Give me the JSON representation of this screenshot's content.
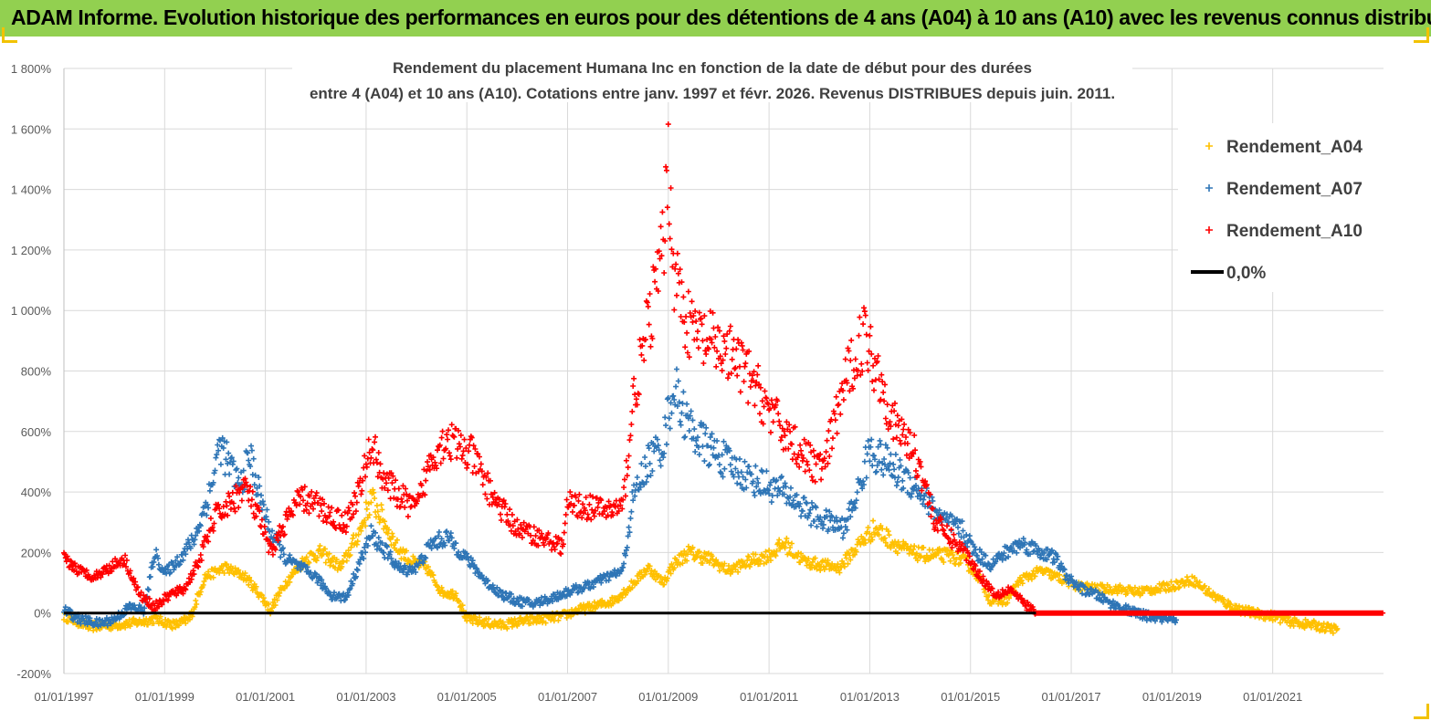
{
  "header": {
    "title": "ADAM Informe. Evolution historique des performances en euros pour des détentions de 4 ans (A04) à 10 ans (A10) avec les revenus connus distribués"
  },
  "colors": {
    "banner": "#92d050",
    "a04": "#ffc000",
    "a07": "#2e75b6",
    "a10": "#ff0000",
    "zero": "#000000",
    "grid": "#d9d9d9"
  },
  "chart_data": {
    "type": "scatter",
    "title_line1": "Rendement du placement Humana Inc en fonction de la date de début pour des durées",
    "title_line2": "entre 4 (A04) et 10 ans (A10).  Cotations entre janv. 1997 et févr. 2026. Revenus DISTRIBUES depuis juin. 2011.",
    "y_ticks": [
      "-200%",
      "0%",
      "200%",
      "400%",
      "600%",
      "800%",
      "1 000%",
      "1 200%",
      "1 400%",
      "1 600%",
      "1 800%"
    ],
    "ylim": [
      -200,
      1800
    ],
    "x_ticks": [
      "01/01/1997",
      "01/01/1999",
      "01/01/2001",
      "01/01/2003",
      "01/01/2005",
      "01/01/2007",
      "01/01/2009",
      "01/01/2011",
      "01/01/2013",
      "01/01/2015",
      "01/01/2017",
      "01/01/2019",
      "01/01/2021"
    ],
    "xlim": [
      1997.0,
      2023.2
    ],
    "legend": [
      "Rendement_A04",
      "Rendement_A07",
      "Rendement_A10",
      "0,0%"
    ],
    "legend_position": "top-right",
    "series": [
      {
        "name": "Rendement_A04",
        "color": "#ffc000",
        "points": [
          [
            1997.0,
            -10
          ],
          [
            1997.5,
            -45
          ],
          [
            1998.0,
            -40
          ],
          [
            1998.5,
            -30
          ],
          [
            1998.8,
            -20
          ],
          [
            1999.2,
            -40
          ],
          [
            1999.5,
            -20
          ],
          [
            1999.8,
            120
          ],
          [
            2000.2,
            150
          ],
          [
            2000.6,
            120
          ],
          [
            2000.9,
            60
          ],
          [
            2001.1,
            10
          ],
          [
            2001.4,
            100
          ],
          [
            2001.8,
            180
          ],
          [
            2002.1,
            200
          ],
          [
            2002.5,
            150
          ],
          [
            2002.9,
            280
          ],
          [
            2003.1,
            380
          ],
          [
            2003.3,
            320
          ],
          [
            2003.6,
            220
          ],
          [
            2003.9,
            170
          ],
          [
            2004.2,
            150
          ],
          [
            2004.5,
            70
          ],
          [
            2004.8,
            60
          ],
          [
            2005.0,
            -20
          ],
          [
            2005.3,
            -30
          ],
          [
            2005.7,
            -40
          ],
          [
            2006.0,
            -30
          ],
          [
            2006.5,
            -20
          ],
          [
            2006.9,
            -10
          ],
          [
            2007.2,
            10
          ],
          [
            2007.5,
            20
          ],
          [
            2007.9,
            40
          ],
          [
            2008.2,
            80
          ],
          [
            2008.6,
            150
          ],
          [
            2008.9,
            100
          ],
          [
            2009.1,
            160
          ],
          [
            2009.4,
            200
          ],
          [
            2009.8,
            180
          ],
          [
            2010.2,
            140
          ],
          [
            2010.6,
            170
          ],
          [
            2011.0,
            190
          ],
          [
            2011.3,
            230
          ],
          [
            2011.7,
            170
          ],
          [
            2012.0,
            160
          ],
          [
            2012.4,
            150
          ],
          [
            2012.8,
            230
          ],
          [
            2013.1,
            280
          ],
          [
            2013.5,
            230
          ],
          [
            2013.8,
            200
          ],
          [
            2014.2,
            190
          ],
          [
            2014.6,
            190
          ],
          [
            2014.9,
            170
          ],
          [
            2015.2,
            110
          ],
          [
            2015.4,
            40
          ],
          [
            2015.7,
            40
          ],
          [
            2016.0,
            110
          ],
          [
            2016.4,
            140
          ],
          [
            2016.7,
            120
          ],
          [
            2017.1,
            90
          ],
          [
            2017.5,
            80
          ],
          [
            2017.9,
            80
          ],
          [
            2018.3,
            70
          ],
          [
            2018.7,
            80
          ],
          [
            2019.0,
            90
          ],
          [
            2019.4,
            110
          ],
          [
            2019.8,
            60
          ],
          [
            2020.2,
            20
          ],
          [
            2020.6,
            0
          ],
          [
            2021.0,
            -10
          ],
          [
            2021.4,
            -30
          ],
          [
            2021.8,
            -40
          ],
          [
            2022.1,
            -50
          ],
          [
            2022.3,
            -55
          ]
        ]
      },
      {
        "name": "Rendement_A07",
        "color": "#2e75b6",
        "points": [
          [
            1997.0,
            10
          ],
          [
            1997.3,
            -20
          ],
          [
            1997.7,
            -35
          ],
          [
            1998.0,
            -20
          ],
          [
            1998.3,
            20
          ],
          [
            1998.6,
            10
          ],
          [
            1998.8,
            200
          ],
          [
            1999.0,
            130
          ],
          [
            1999.3,
            180
          ],
          [
            1999.6,
            250
          ],
          [
            1999.9,
            400
          ],
          [
            2000.1,
            560
          ],
          [
            2000.3,
            480
          ],
          [
            2000.5,
            420
          ],
          [
            2000.7,
            520
          ],
          [
            2000.9,
            380
          ],
          [
            2001.1,
            270
          ],
          [
            2001.4,
            180
          ],
          [
            2001.7,
            150
          ],
          [
            2002.0,
            120
          ],
          [
            2002.3,
            60
          ],
          [
            2002.6,
            50
          ],
          [
            2002.9,
            180
          ],
          [
            2003.1,
            260
          ],
          [
            2003.4,
            200
          ],
          [
            2003.7,
            140
          ],
          [
            2004.0,
            150
          ],
          [
            2004.3,
            230
          ],
          [
            2004.6,
            250
          ],
          [
            2004.9,
            200
          ],
          [
            2005.1,
            160
          ],
          [
            2005.4,
            100
          ],
          [
            2005.7,
            60
          ],
          [
            2006.0,
            40
          ],
          [
            2006.3,
            30
          ],
          [
            2006.7,
            50
          ],
          [
            2007.0,
            70
          ],
          [
            2007.4,
            90
          ],
          [
            2007.8,
            120
          ],
          [
            2008.1,
            140
          ],
          [
            2008.3,
            380
          ],
          [
            2008.6,
            500
          ],
          [
            2008.9,
            560
          ],
          [
            2009.1,
            750
          ],
          [
            2009.4,
            620
          ],
          [
            2009.7,
            560
          ],
          [
            2010.0,
            520
          ],
          [
            2010.3,
            480
          ],
          [
            2010.7,
            440
          ],
          [
            2011.0,
            420
          ],
          [
            2011.3,
            400
          ],
          [
            2011.6,
            360
          ],
          [
            2011.9,
            320
          ],
          [
            2012.2,
            300
          ],
          [
            2012.5,
            280
          ],
          [
            2012.8,
            420
          ],
          [
            2013.0,
            540
          ],
          [
            2013.3,
            500
          ],
          [
            2013.6,
            460
          ],
          [
            2013.9,
            420
          ],
          [
            2014.2,
            360
          ],
          [
            2014.5,
            300
          ],
          [
            2014.8,
            280
          ],
          [
            2015.1,
            200
          ],
          [
            2015.4,
            160
          ],
          [
            2015.7,
            200
          ],
          [
            2016.0,
            230
          ],
          [
            2016.3,
            210
          ],
          [
            2016.7,
            180
          ],
          [
            2016.9,
            120
          ],
          [
            2017.2,
            80
          ],
          [
            2017.5,
            60
          ],
          [
            2017.8,
            30
          ],
          [
            2018.1,
            10
          ],
          [
            2018.5,
            -10
          ],
          [
            2018.9,
            -20
          ],
          [
            2019.1,
            -35
          ]
        ]
      },
      {
        "name": "Rendement_A10",
        "color": "#ff0000",
        "points": [
          [
            1997.0,
            180
          ],
          [
            1997.3,
            140
          ],
          [
            1997.6,
            120
          ],
          [
            1997.9,
            150
          ],
          [
            1998.2,
            180
          ],
          [
            1998.5,
            60
          ],
          [
            1998.8,
            20
          ],
          [
            1999.1,
            60
          ],
          [
            1999.4,
            80
          ],
          [
            1999.7,
            180
          ],
          [
            2000.0,
            320
          ],
          [
            2000.3,
            360
          ],
          [
            2000.6,
            420
          ],
          [
            2000.9,
            300
          ],
          [
            2001.1,
            200
          ],
          [
            2001.4,
            300
          ],
          [
            2001.7,
            380
          ],
          [
            2002.0,
            360
          ],
          [
            2002.3,
            320
          ],
          [
            2002.6,
            300
          ],
          [
            2002.9,
            420
          ],
          [
            2003.1,
            560
          ],
          [
            2003.4,
            430
          ],
          [
            2003.7,
            380
          ],
          [
            2004.0,
            340
          ],
          [
            2004.3,
            520
          ],
          [
            2004.6,
            580
          ],
          [
            2004.9,
            540
          ],
          [
            2005.1,
            520
          ],
          [
            2005.4,
            420
          ],
          [
            2005.7,
            340
          ],
          [
            2006.0,
            280
          ],
          [
            2006.3,
            260
          ],
          [
            2006.6,
            240
          ],
          [
            2006.9,
            220
          ],
          [
            2007.0,
            360
          ],
          [
            2007.4,
            350
          ],
          [
            2007.8,
            340
          ],
          [
            2008.1,
            350
          ],
          [
            2008.3,
            700
          ],
          [
            2008.6,
            950
          ],
          [
            2008.9,
            1200
          ],
          [
            2009.0,
            1500
          ],
          [
            2009.1,
            1150
          ],
          [
            2009.4,
            950
          ],
          [
            2009.7,
            900
          ],
          [
            2010.0,
            880
          ],
          [
            2010.3,
            840
          ],
          [
            2010.6,
            780
          ],
          [
            2010.9,
            700
          ],
          [
            2011.2,
            620
          ],
          [
            2011.5,
            560
          ],
          [
            2011.8,
            500
          ],
          [
            2012.1,
            480
          ],
          [
            2012.4,
            700
          ],
          [
            2012.7,
            850
          ],
          [
            2012.9,
            920
          ],
          [
            2013.2,
            780
          ],
          [
            2013.5,
            620
          ],
          [
            2013.8,
            560
          ],
          [
            2014.0,
            480
          ],
          [
            2014.3,
            300
          ],
          [
            2014.6,
            250
          ],
          [
            2014.9,
            200
          ],
          [
            2015.2,
            120
          ],
          [
            2015.5,
            60
          ],
          [
            2015.8,
            80
          ],
          [
            2016.0,
            40
          ],
          [
            2016.3,
            0
          ],
          [
            2023.2,
            0
          ]
        ]
      },
      {
        "name": "0,0%",
        "color": "#000000",
        "points": [
          [
            1997.0,
            0
          ],
          [
            2016.3,
            0
          ]
        ]
      }
    ]
  }
}
